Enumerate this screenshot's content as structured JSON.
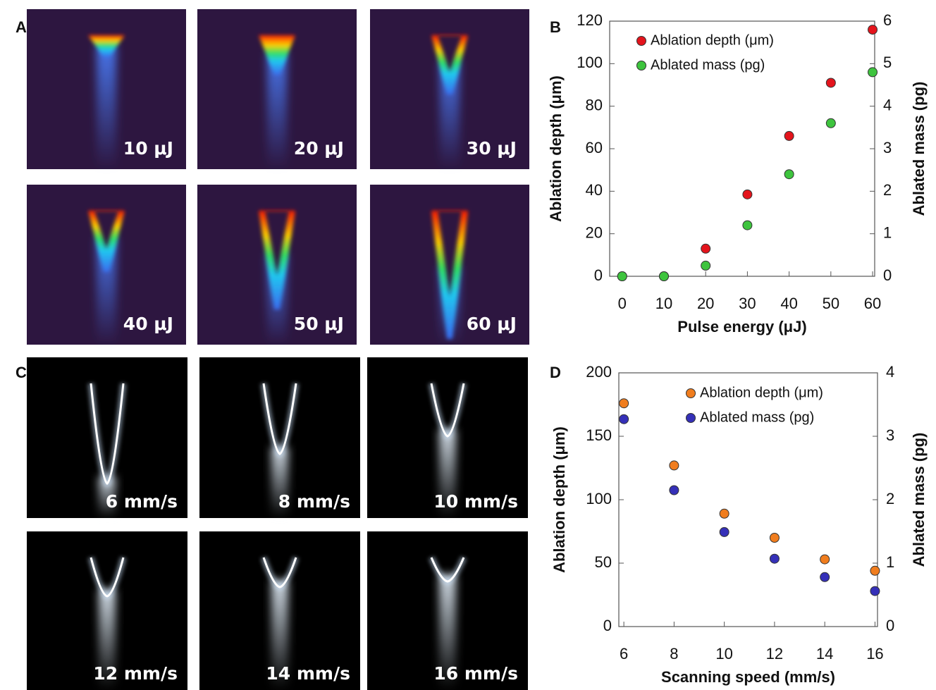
{
  "panel_labels": [
    "A",
    "B",
    "C",
    "D"
  ],
  "panel_a_images": [
    "10 μJ",
    "20 μJ",
    "30 μJ",
    "40 μJ",
    "50 μJ",
    "60 μJ"
  ],
  "panel_c_images": [
    "6 mm/s",
    "8 mm/s",
    "10 mm/s",
    "12 mm/s",
    "14 mm/s",
    "16 mm/s"
  ],
  "chart_data": [
    {
      "type": "scatter",
      "x_label": "Pulse energy (μJ)",
      "y_label": "Ablation depth (μm)",
      "y2_label": "Ablated mass (pg)",
      "x": [
        0,
        10,
        20,
        30,
        40,
        50,
        60
      ],
      "series": [
        {
          "name": "Ablation depth (μm)",
          "color": "#e4141c",
          "values": [
            0,
            0,
            13,
            38.5,
            66,
            91,
            116
          ]
        },
        {
          "name": "Ablated mass (pg)",
          "color": "#3ec43e",
          "axis": "y2",
          "values": [
            0,
            0,
            0.25,
            1.2,
            2.4,
            3.6,
            4.8
          ]
        }
      ],
      "xlim": [
        -3,
        60.5
      ],
      "xticks": [
        0,
        10,
        20,
        30,
        40,
        50,
        60
      ],
      "ylim": [
        0,
        120
      ],
      "yticks": [
        0,
        20,
        40,
        60,
        80,
        100,
        120
      ],
      "y2lim": [
        0,
        6
      ],
      "y2ticks": [
        0,
        1,
        2,
        3,
        4,
        5,
        6
      ],
      "legend": "upper left"
    },
    {
      "type": "scatter",
      "x_label": "Scanning speed (mm/s)",
      "y_label": "Ablation depth (μm)",
      "y2_label": "Ablated mass (pg)",
      "x": [
        6,
        8,
        10,
        12,
        14,
        16
      ],
      "series": [
        {
          "name": "Ablation depth (μm)",
          "color": "#f07d1e",
          "values": [
            176,
            127,
            89,
            70,
            53,
            44
          ]
        },
        {
          "name": "Ablated mass (pg)",
          "color": "#3530b8",
          "axis": "y2",
          "values": [
            3.27,
            2.15,
            1.49,
            1.07,
            0.78,
            0.56
          ]
        }
      ],
      "xlim": [
        5.8,
        16.1
      ],
      "xticks": [
        6,
        8,
        10,
        12,
        14,
        16
      ],
      "ylim": [
        0,
        200
      ],
      "yticks": [
        0,
        50,
        100,
        150,
        200
      ],
      "y2lim": [
        0,
        4
      ],
      "y2ticks": [
        0,
        1,
        2,
        3,
        4
      ],
      "legend": "upper right"
    }
  ]
}
